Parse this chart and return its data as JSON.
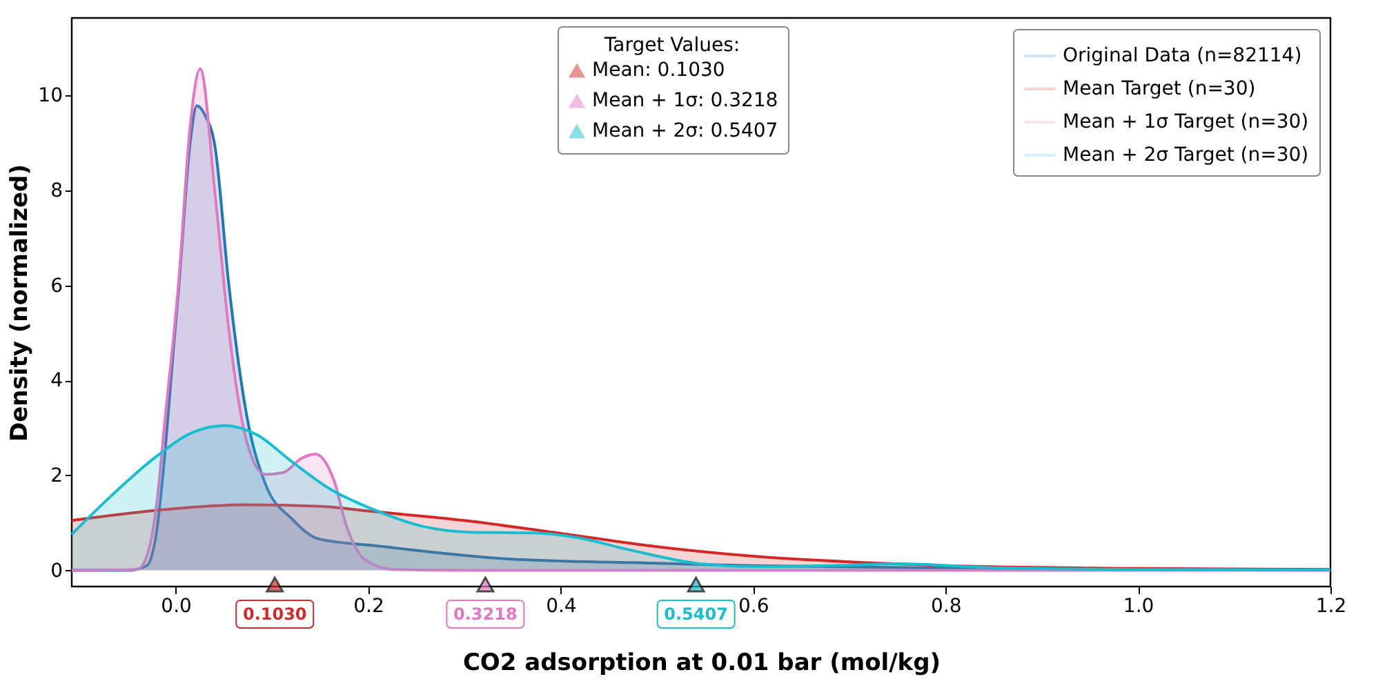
{
  "chart_data": {
    "type": "area",
    "xlabel": "CO2 adsorption at 0.01 bar (mol/kg)",
    "ylabel": "Density (normalized)",
    "legend_title": "Target Values:",
    "legend": "top right",
    "grid": false,
    "xlim": [
      -0.108,
      1.2
    ],
    "xticks": [
      {
        "value": 0,
        "label": "0.0"
      },
      {
        "value": 0.2,
        "label": "0.2"
      },
      {
        "value": 0.4,
        "label": "0.4"
      },
      {
        "value": 0.6,
        "label": "0.6"
      },
      {
        "value": 0.8,
        "label": "0.8"
      },
      {
        "value": 1,
        "label": "1.0"
      },
      {
        "value": 1.2,
        "label": "1.2"
      }
    ],
    "ylim": [
      -0.34,
      11.63
    ],
    "yticks": [
      0,
      2,
      4,
      6,
      8,
      10
    ],
    "series": [
      {
        "name": "Original Data (n=82114)",
        "color": "#1f77b4",
        "x": [
          -0.108,
          -0.05,
          -0.03,
          -0.02,
          -0.011,
          -0.003,
          0.003,
          0.015,
          0.022,
          0.03,
          0.041,
          0.055,
          0.074,
          0.093,
          0.121,
          0.149,
          0.207,
          0.339,
          0.5,
          0.6,
          0.8,
          1.0,
          1.2
        ],
        "values": [
          0,
          0,
          0.1,
          0.8,
          2.5,
          4.5,
          5.9,
          9.0,
          9.78,
          9.6,
          8.9,
          6.05,
          3.24,
          1.83,
          1.08,
          0.66,
          0.52,
          0.25,
          0.15,
          0.1,
          0.05,
          0.02,
          0.01
        ]
      },
      {
        "name": "Mean Target (n=30)",
        "color": "#d62728",
        "x": [
          -0.108,
          0,
          0.07,
          0.15,
          0.2,
          0.3,
          0.4,
          0.5,
          0.6,
          0.7,
          0.8,
          1.0,
          1.2
        ],
        "values": [
          1.05,
          1.3,
          1.38,
          1.35,
          1.25,
          1.05,
          0.78,
          0.5,
          0.3,
          0.18,
          0.1,
          0.04,
          0.02
        ]
      },
      {
        "name": "Mean + 1σ Target (n=30)",
        "color": "#e377c2",
        "x": [
          -0.108,
          -0.04,
          -0.03,
          -0.02,
          -0.011,
          0.003,
          0.015,
          0.0255,
          0.041,
          0.055,
          0.074,
          0.093,
          0.112,
          0.13,
          0.145,
          0.164,
          0.178,
          0.197,
          0.226,
          0.3,
          1.2
        ],
        "values": [
          0,
          0.02,
          0.3,
          1.36,
          3.2,
          6.05,
          9.35,
          10.56,
          7.9,
          5.1,
          2.7,
          2.02,
          2.06,
          2.35,
          2.45,
          1.92,
          0.9,
          0.22,
          0.02,
          0,
          0
        ]
      },
      {
        "name": "Mean + 2σ Target (n=30)",
        "color": "#17becf",
        "x": [
          -0.108,
          -0.068,
          -0.02,
          0.017,
          0.051,
          0.084,
          0.12,
          0.159,
          0.207,
          0.254,
          0.31,
          0.371,
          0.42,
          0.468,
          0.545,
          0.6,
          0.68,
          0.752,
          0.843,
          1.0,
          1.2
        ],
        "values": [
          0.76,
          1.55,
          2.4,
          2.9,
          3.05,
          2.86,
          2.3,
          1.73,
          1.27,
          0.94,
          0.8,
          0.79,
          0.68,
          0.45,
          0.14,
          0.08,
          0.1,
          0.14,
          0.06,
          0.02,
          0.01
        ]
      },
      {
        "name": "Mean: 0.1030",
        "type": "scatter",
        "marker": "triangle",
        "color": "#d62728",
        "x": [
          0.103
        ],
        "values": [
          -0.3
        ]
      },
      {
        "name": "Mean + 1σ: 0.3218",
        "type": "scatter",
        "marker": "triangle",
        "color": "#e377c2",
        "x": [
          0.3218
        ],
        "values": [
          -0.3
        ]
      },
      {
        "name": "Mean + 2σ: 0.5407",
        "type": "scatter",
        "marker": "triangle",
        "color": "#17becf",
        "x": [
          0.5407
        ],
        "values": [
          -0.3
        ]
      }
    ],
    "annotations": [
      "0.1030",
      "0.3218",
      "0.5407"
    ]
  }
}
